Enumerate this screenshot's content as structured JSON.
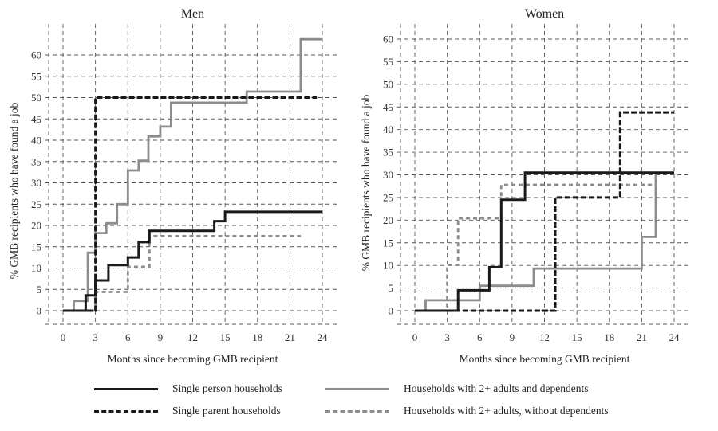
{
  "chart_data": [
    {
      "type": "line",
      "step": true,
      "title": "Men",
      "xlabel": "Months since becoming GMB recipient",
      "ylabel": "% GMB recipients who have found a job",
      "xlim": [
        0,
        24
      ],
      "ylim": [
        0,
        60
      ],
      "xticks": [
        0,
        3,
        6,
        9,
        12,
        15,
        18,
        21,
        24
      ],
      "yticks": [
        0,
        5,
        10,
        15,
        20,
        25,
        30,
        35,
        40,
        45,
        50,
        55,
        60
      ],
      "grid": true,
      "series": [
        {
          "name": "Single person households",
          "x": [
            0,
            2.1,
            3,
            4.2,
            6,
            7,
            8,
            14,
            15,
            24
          ],
          "y": [
            0,
            3.6,
            7.1,
            10.7,
            12.5,
            16.1,
            18.75,
            21.0,
            23.2,
            23.2
          ]
        },
        {
          "name": "Single parent households",
          "x": [
            0,
            3,
            23.5
          ],
          "y": [
            0,
            50,
            50
          ]
        },
        {
          "name": "Households with 2+ adults and dependents",
          "x": [
            0,
            1,
            2.3,
            3,
            4,
            5,
            6,
            7,
            7.9,
            9,
            10,
            17,
            22,
            24
          ],
          "y": [
            0,
            2.3,
            13.6,
            18.2,
            20.5,
            25.0,
            32.9,
            35.2,
            40.9,
            43.2,
            48.8,
            51.4,
            63.7,
            63.7
          ]
        },
        {
          "name": "Households with 2+ adults, without dependents",
          "x": [
            0,
            3,
            6,
            8,
            22
          ],
          "y": [
            0,
            4.4,
            10.3,
            17.5,
            17.5
          ]
        }
      ]
    },
    {
      "type": "line",
      "step": true,
      "title": "Women",
      "xlabel": "Months since becoming GMB recipient",
      "ylabel": "% GMB recipients who have found a job",
      "xlim": [
        0,
        24
      ],
      "ylim": [
        0,
        60
      ],
      "xticks": [
        0,
        3,
        6,
        9,
        12,
        15,
        18,
        21,
        24
      ],
      "yticks": [
        0,
        5,
        10,
        15,
        20,
        25,
        30,
        35,
        40,
        45,
        50,
        55,
        60
      ],
      "grid": true,
      "series": [
        {
          "name": "Single person households",
          "x": [
            0,
            4,
            6.9,
            8,
            10.2,
            24
          ],
          "y": [
            0,
            4.5,
            9.6,
            24.5,
            30.5,
            30.5
          ]
        },
        {
          "name": "Single parent households",
          "x": [
            0,
            13,
            19,
            24
          ],
          "y": [
            0,
            25.0,
            43.8,
            43.8
          ]
        },
        {
          "name": "Households with 2+ adults and dependents",
          "x": [
            0,
            1,
            6,
            11,
            21,
            22.3,
            22.3
          ],
          "y": [
            0,
            2.3,
            5.5,
            9.3,
            16.3,
            30.5,
            30.5
          ]
        },
        {
          "name": "Households with 2+ adults, without dependents",
          "x": [
            0,
            3,
            4,
            8,
            22
          ],
          "y": [
            0,
            10.1,
            20.4,
            27.8,
            27.8
          ]
        }
      ]
    }
  ],
  "legend": {
    "placement": "bottom",
    "items": [
      {
        "label": "Single person households",
        "color": "#1a1a1a",
        "style": "solid"
      },
      {
        "label": "Households with 2+ adults and dependents",
        "color": "#8c8c8c",
        "style": "solid"
      },
      {
        "label": "Single parent households",
        "color": "#1a1a1a",
        "style": "dashed"
      },
      {
        "label": "Households with 2+ adults, without dependents",
        "color": "#8c8c8c",
        "style": "dashed"
      }
    ]
  },
  "series_styles": [
    {
      "color": "#1a1a1a",
      "dash": "none"
    },
    {
      "color": "#1a1a1a",
      "dash": "dashed"
    },
    {
      "color": "#8c8c8c",
      "dash": "none"
    },
    {
      "color": "#8c8c8c",
      "dash": "dashed"
    }
  ]
}
